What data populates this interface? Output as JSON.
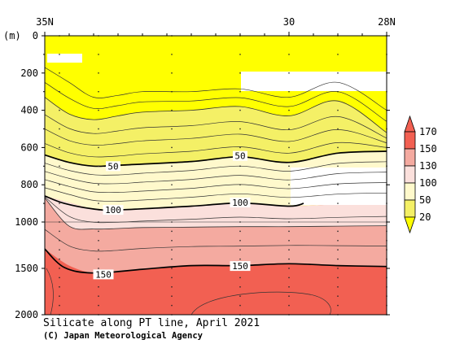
{
  "chart_data": {
    "type": "heatmap",
    "title": "Silicate along PT line, April 2021",
    "credit": "(C) Japan Meteorological Agency",
    "y_unit_label": "(m)",
    "y_axis": {
      "scale": "piecewise-linear (0-1000 m expanded, 1000-2000 m compressed)",
      "range": [
        0,
        2000
      ],
      "tick_labels": [
        "0",
        "200",
        "400",
        "600",
        "800",
        "1000",
        "1500",
        "2000"
      ]
    },
    "x_axis": {
      "range_lat_north": [
        35,
        28
      ],
      "tick_labels": [
        "35N",
        "30",
        "28N"
      ]
    },
    "colorbar": {
      "levels": [
        20,
        50,
        100,
        130,
        150,
        170
      ],
      "tick_labels": [
        "20",
        "50",
        "100",
        "130",
        "150",
        "170"
      ],
      "colors": [
        "#ffff00",
        "#f4f066",
        "#fff9cc",
        "#fbe0dc",
        "#f4aaa0",
        "#f26052"
      ],
      "extend": "both"
    },
    "contour_labels": [
      {
        "value": "50",
        "lat": 33.6,
        "depth": 700
      },
      {
        "value": "50",
        "lat": 31.0,
        "depth": 645
      },
      {
        "value": "100",
        "lat": 33.6,
        "depth": 935
      },
      {
        "value": "100",
        "lat": 31.0,
        "depth": 895
      },
      {
        "value": "150",
        "lat": 33.8,
        "depth": 1565
      },
      {
        "value": "150",
        "lat": 31.0,
        "depth": 1475
      }
    ],
    "isolines": {
      "50": [
        [
          35.0,
          640
        ],
        [
          34.5,
          680
        ],
        [
          34.0,
          700
        ],
        [
          33.5,
          695
        ],
        [
          32.0,
          675
        ],
        [
          31.0,
          650
        ],
        [
          30.0,
          680
        ],
        [
          29.0,
          630
        ],
        [
          28.0,
          620
        ]
      ],
      "100": [
        [
          35.0,
          860
        ],
        [
          34.6,
          900
        ],
        [
          34.0,
          930
        ],
        [
          33.5,
          935
        ],
        [
          32.0,
          915
        ],
        [
          31.0,
          898
        ],
        [
          30.0,
          915
        ],
        [
          29.7,
          900
        ]
      ],
      "150": [
        [
          35.0,
          1290
        ],
        [
          34.6,
          1490
        ],
        [
          34.0,
          1550
        ],
        [
          33.0,
          1510
        ],
        [
          32.0,
          1470
        ],
        [
          31.0,
          1470
        ],
        [
          30.0,
          1450
        ],
        [
          29.0,
          1470
        ],
        [
          28.0,
          1480
        ]
      ]
    },
    "sample_lats": [
      34.7,
      33.9,
      32.4,
      31.0,
      30.0,
      29.0,
      28.0
    ]
  }
}
